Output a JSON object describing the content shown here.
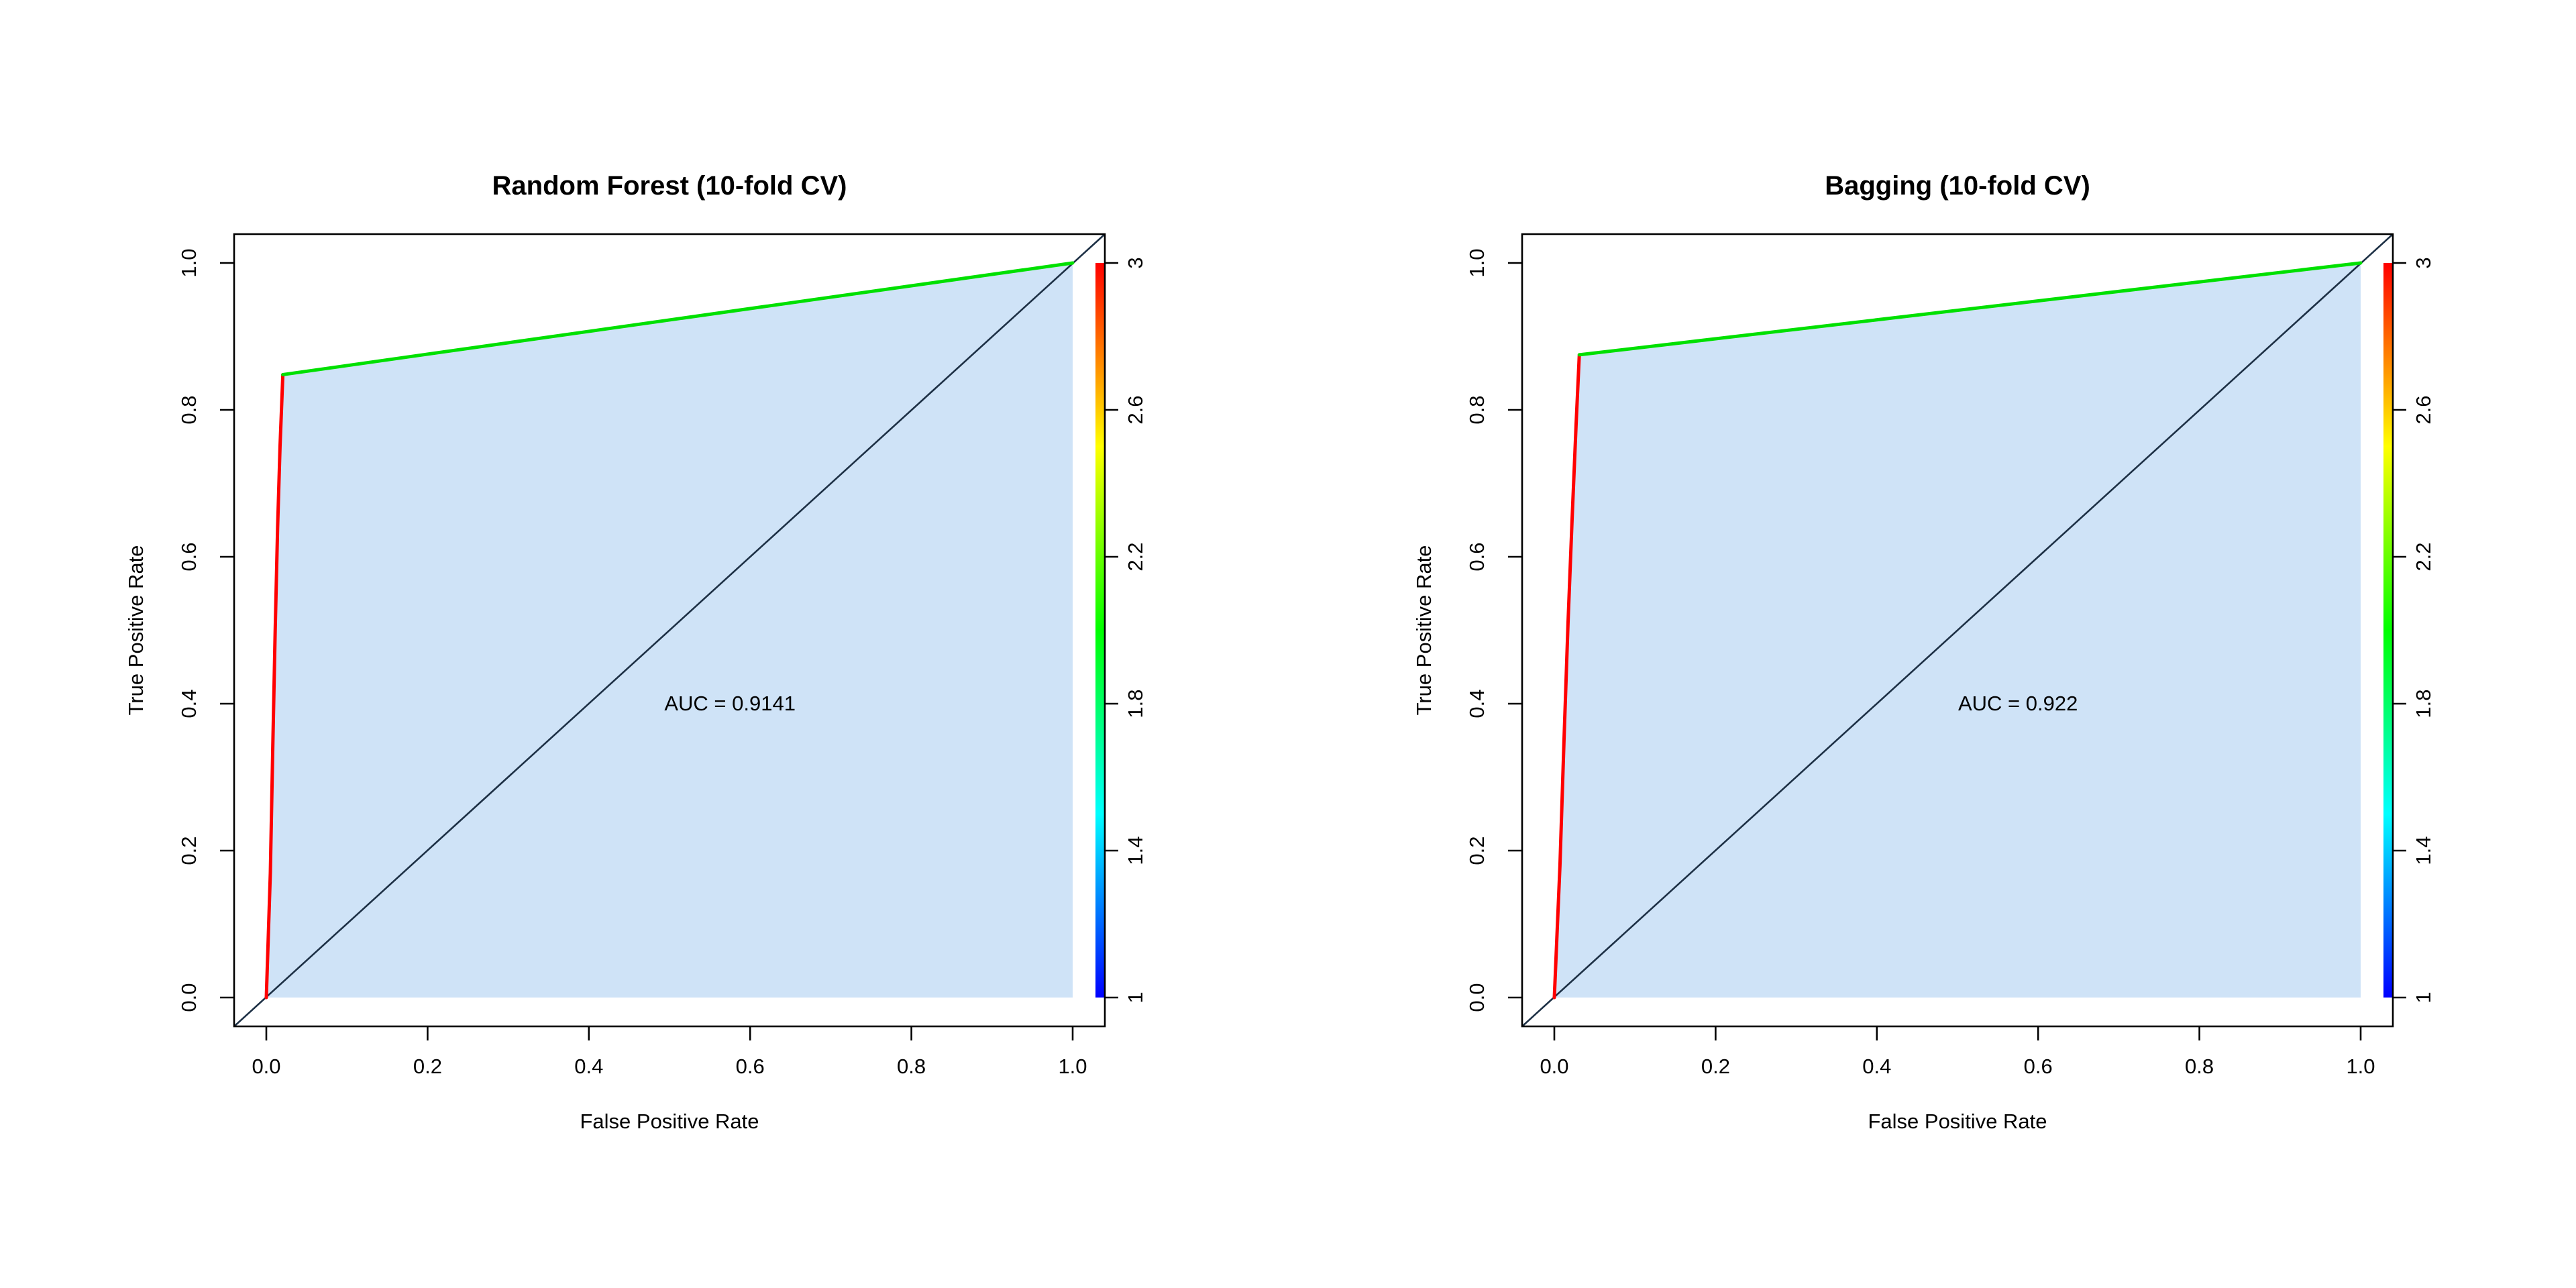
{
  "figure": {
    "background_color": "#ffffff",
    "description": "Two ROC curve panels side by side with colorized cutoff colorbars"
  },
  "chart_data": [
    {
      "type": "line",
      "title": "Random Forest (10-fold CV)",
      "xlabel": "False Positive Rate",
      "ylabel": "True Positive Rate",
      "xlim": [
        0,
        1
      ],
      "ylim": [
        0,
        1
      ],
      "axis_padding_frac": 0.04,
      "xtick_values": [
        0.0,
        0.2,
        0.4,
        0.6,
        0.8,
        1.0
      ],
      "xtick_labels": [
        "0.0",
        "0.2",
        "0.4",
        "0.6",
        "0.8",
        "1.0"
      ],
      "ytick_values": [
        0.0,
        0.2,
        0.4,
        0.6,
        0.8,
        1.0
      ],
      "ytick_labels": [
        "0.0",
        "0.2",
        "0.4",
        "0.6",
        "0.8",
        "1.0"
      ],
      "grid": false,
      "auc_value": 0.9141,
      "auc_label": "AUC = 0.9141",
      "auc_label_pos": [
        0.575,
        0.4
      ],
      "roc_segments": [
        {
          "name": "high-cutoff-segment",
          "color": "#ff0000",
          "points": [
            [
              0.0,
              0.0
            ],
            [
              0.005,
              0.17
            ],
            [
              0.008,
              0.34
            ],
            [
              0.011,
              0.5
            ],
            [
              0.014,
              0.64
            ],
            [
              0.017,
              0.75
            ],
            [
              0.0205,
              0.848
            ]
          ]
        },
        {
          "name": "mid-cutoff-segment",
          "color": "#00e000",
          "points": [
            [
              0.0205,
              0.848
            ],
            [
              1.0,
              1.0
            ]
          ]
        }
      ],
      "fill_color": "#cfe3f7",
      "diagonal": {
        "from": [
          0,
          0
        ],
        "to": [
          1,
          1
        ],
        "color": "#1d3045"
      },
      "colorbar": {
        "min": 1,
        "max": 3,
        "tick_values": [
          1,
          1.4,
          1.8,
          2.2,
          2.6,
          3
        ],
        "tick_labels": [
          "1",
          "1.4",
          "1.8",
          "2.2",
          "2.6",
          "3"
        ],
        "gradient_bottom_to_top": [
          "#0000ff",
          "#00ffff",
          "#00ff00",
          "#ffff00",
          "#ff0000"
        ]
      }
    },
    {
      "type": "line",
      "title": "Bagging (10-fold CV)",
      "xlabel": "False Positive Rate",
      "ylabel": "True Positive Rate",
      "xlim": [
        0,
        1
      ],
      "ylim": [
        0,
        1
      ],
      "axis_padding_frac": 0.04,
      "xtick_values": [
        0.0,
        0.2,
        0.4,
        0.6,
        0.8,
        1.0
      ],
      "xtick_labels": [
        "0.0",
        "0.2",
        "0.4",
        "0.6",
        "0.8",
        "1.0"
      ],
      "ytick_values": [
        0.0,
        0.2,
        0.4,
        0.6,
        0.8,
        1.0
      ],
      "ytick_labels": [
        "0.0",
        "0.2",
        "0.4",
        "0.6",
        "0.8",
        "1.0"
      ],
      "grid": false,
      "auc_value": 0.922,
      "auc_label": "AUC = 0.922",
      "auc_label_pos": [
        0.575,
        0.4
      ],
      "roc_segments": [
        {
          "name": "high-cutoff-segment",
          "color": "#ff0000",
          "points": [
            [
              0.0,
              0.0
            ],
            [
              0.007,
              0.18
            ],
            [
              0.012,
              0.35
            ],
            [
              0.017,
              0.51
            ],
            [
              0.022,
              0.65
            ],
            [
              0.027,
              0.78
            ],
            [
              0.031,
              0.875
            ]
          ]
        },
        {
          "name": "mid-cutoff-segment",
          "color": "#00e000",
          "points": [
            [
              0.031,
              0.875
            ],
            [
              1.0,
              1.0
            ]
          ]
        }
      ],
      "fill_color": "#cfe3f7",
      "diagonal": {
        "from": [
          0,
          0
        ],
        "to": [
          1,
          1
        ],
        "color": "#1d3045"
      },
      "colorbar": {
        "min": 1,
        "max": 3,
        "tick_values": [
          1,
          1.4,
          1.8,
          2.2,
          2.6,
          3
        ],
        "tick_labels": [
          "1",
          "1.4",
          "1.8",
          "2.2",
          "2.6",
          "3"
        ],
        "gradient_bottom_to_top": [
          "#0000ff",
          "#00ffff",
          "#00ff00",
          "#ffff00",
          "#ff0000"
        ]
      }
    }
  ]
}
